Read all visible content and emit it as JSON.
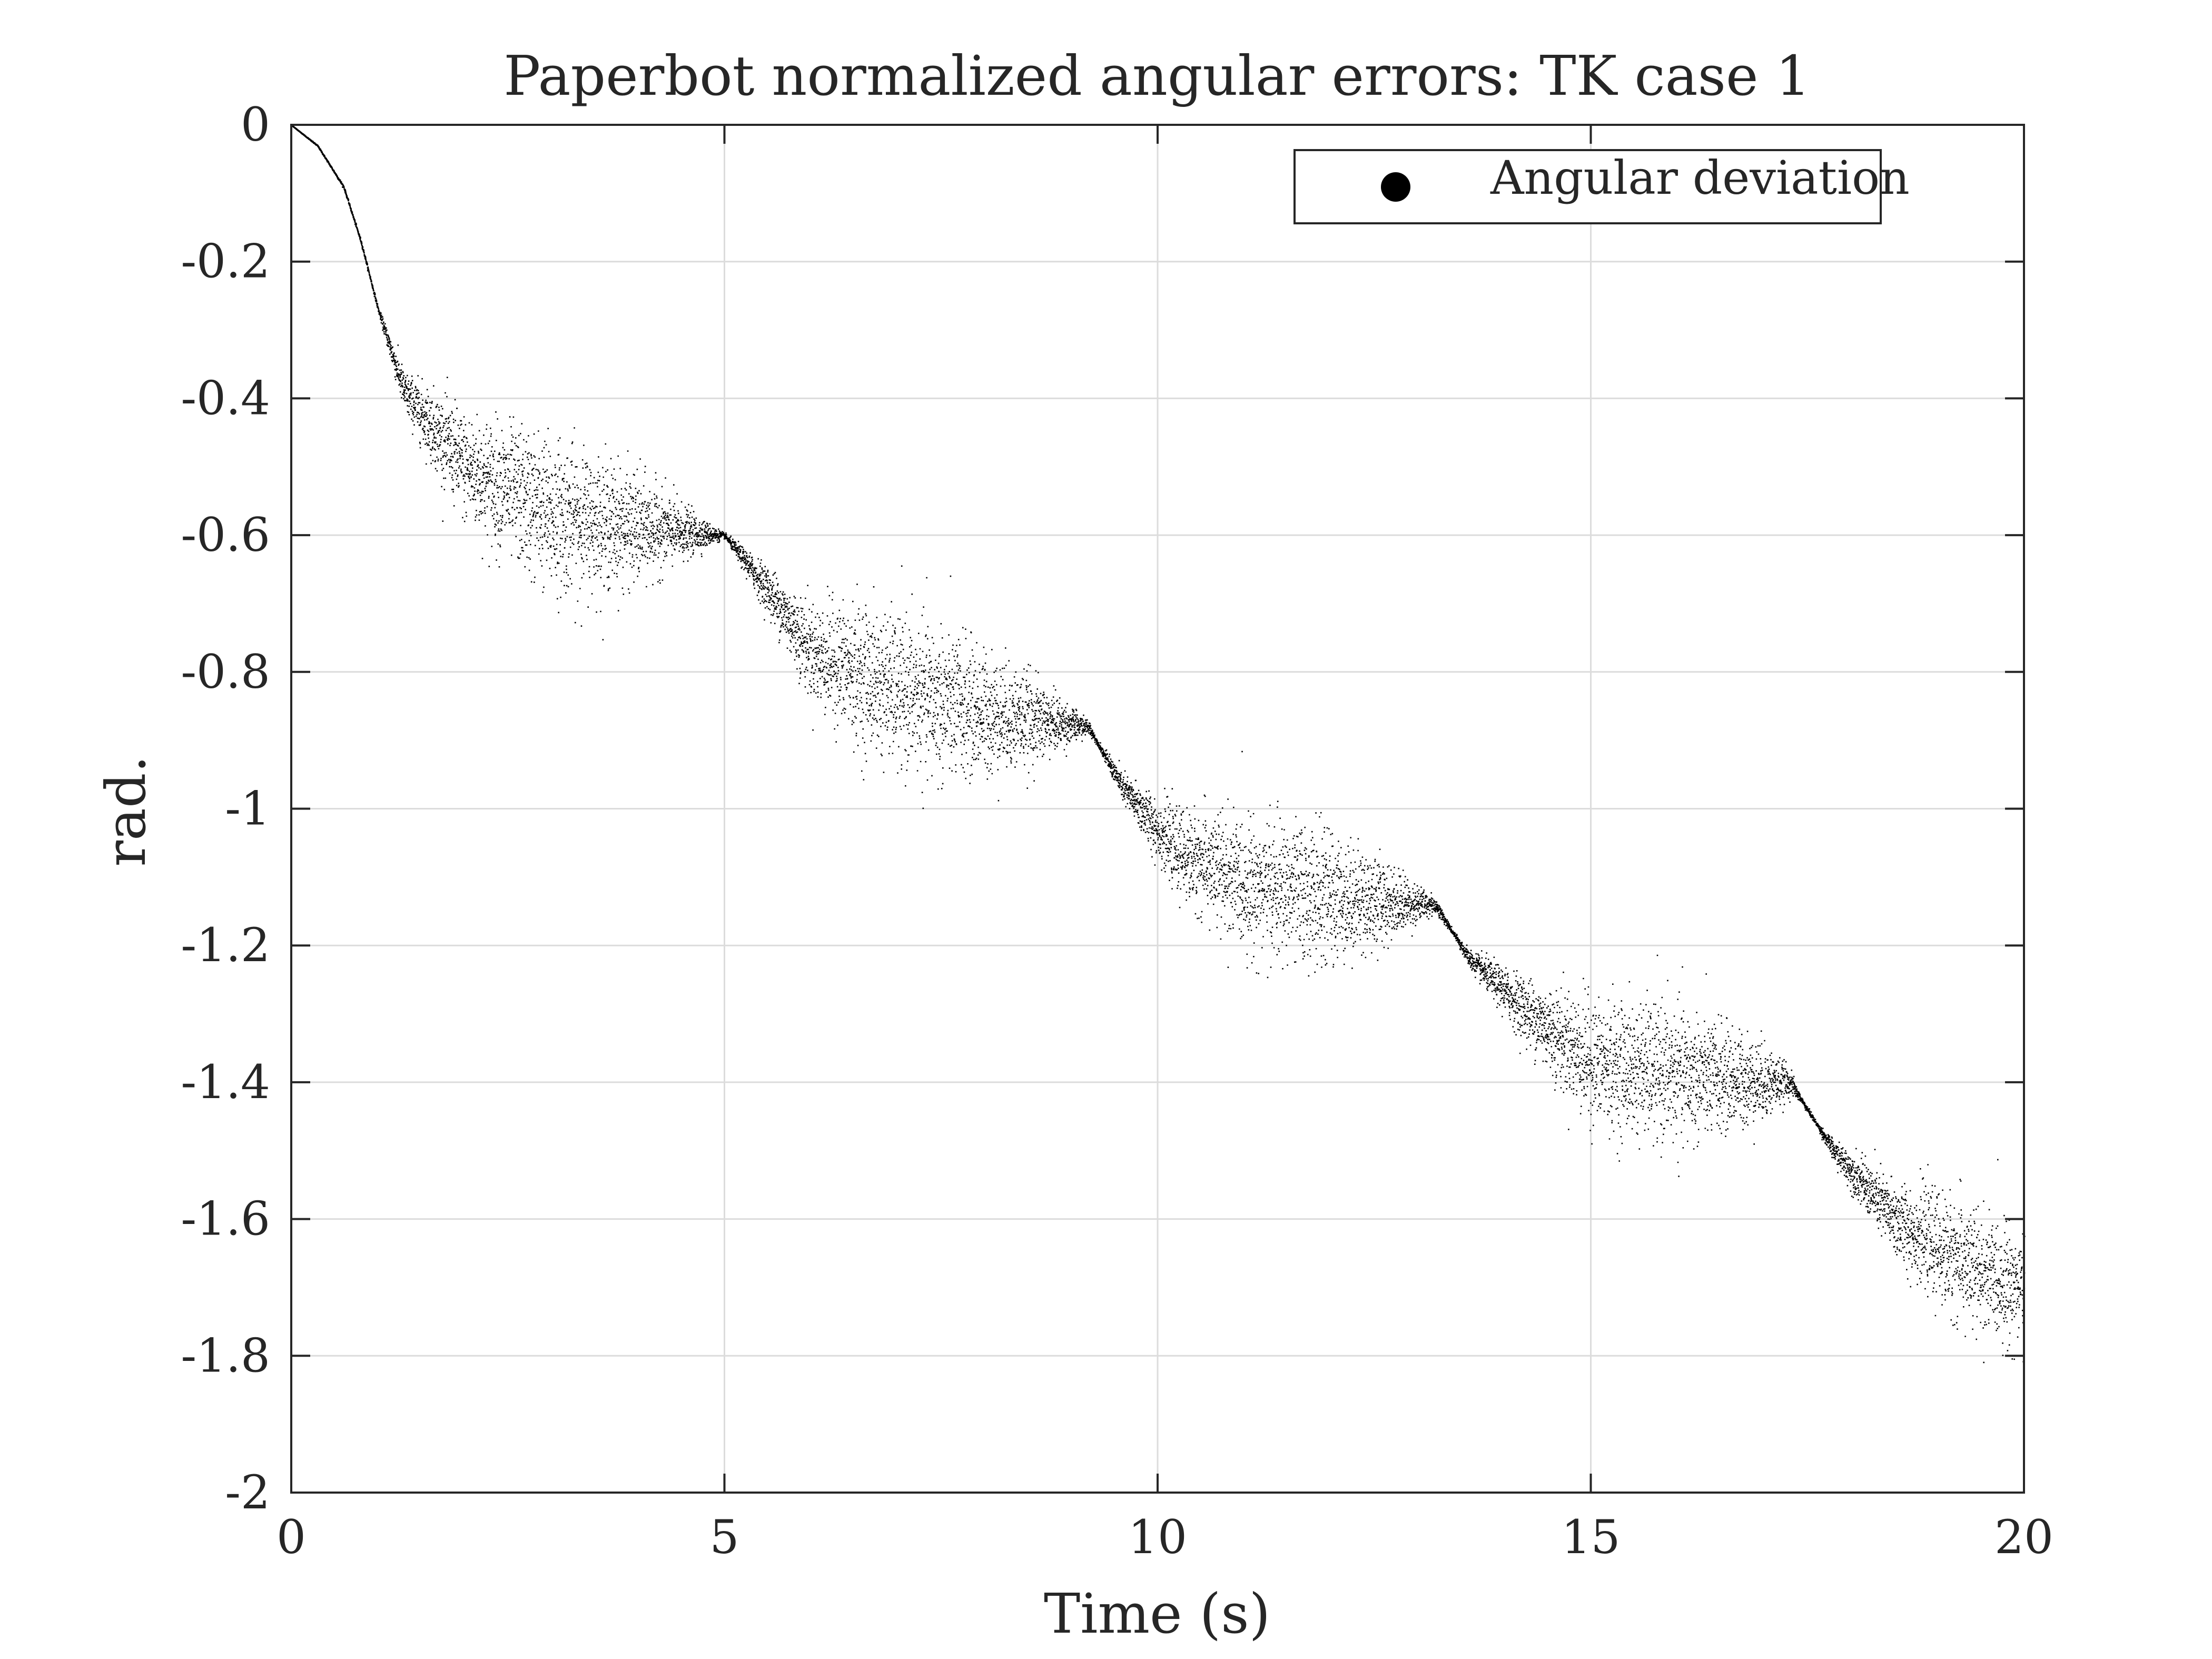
{
  "chart_data": {
    "type": "scatter",
    "title": "Paperbot normalized angular errors: TK case 1",
    "xlabel": "Time (s)",
    "ylabel": "rad.",
    "xlim": [
      0,
      20
    ],
    "ylim": [
      -2,
      0
    ],
    "xticks": [
      0,
      5,
      10,
      15,
      20
    ],
    "xtick_labels": [
      "0",
      "5",
      "10",
      "15",
      "20"
    ],
    "yticks": [
      0,
      -0.2,
      -0.4,
      -0.6,
      -0.8,
      -1,
      -1.2,
      -1.4,
      -1.6,
      -1.8,
      -2
    ],
    "ytick_labels": [
      "0",
      "-0.2",
      "-0.4",
      "-0.6",
      "-0.8",
      "-1",
      "-1.2",
      "-1.4",
      "-1.6",
      "-1.8",
      "-2"
    ],
    "grid": true,
    "legend": {
      "position": "top-right",
      "entries": [
        "Angular deviation"
      ]
    },
    "colors": {
      "points": "#000000",
      "grid": "#dcdcdc",
      "axes": "#262626"
    },
    "series": [
      {
        "name": "Angular deviation",
        "trend": [
          [
            0,
            0
          ],
          [
            0.3,
            -0.03
          ],
          [
            0.6,
            -0.09
          ],
          [
            0.8,
            -0.17
          ],
          [
            1.0,
            -0.27
          ],
          [
            1.3,
            -0.39
          ],
          [
            2.0,
            -0.5
          ],
          [
            3.0,
            -0.57
          ],
          [
            4.0,
            -0.59
          ],
          [
            5.0,
            -0.6
          ],
          [
            5.5,
            -0.68
          ],
          [
            6.0,
            -0.77
          ],
          [
            7.0,
            -0.83
          ],
          [
            8.0,
            -0.86
          ],
          [
            9.2,
            -0.88
          ],
          [
            9.6,
            -0.97
          ],
          [
            10.2,
            -1.06
          ],
          [
            11.0,
            -1.11
          ],
          [
            12.0,
            -1.13
          ],
          [
            13.2,
            -1.14
          ],
          [
            13.6,
            -1.22
          ],
          [
            14.3,
            -1.3
          ],
          [
            15.0,
            -1.37
          ],
          [
            16.0,
            -1.39
          ],
          [
            17.3,
            -1.4
          ],
          [
            17.8,
            -1.5
          ],
          [
            18.5,
            -1.6
          ],
          [
            19.5,
            -1.68
          ],
          [
            20.0,
            -1.7
          ]
        ],
        "spread": [
          [
            0,
            0
          ],
          [
            1.0,
            0.003
          ],
          [
            1.2,
            0.02
          ],
          [
            2.0,
            0.07
          ],
          [
            3.0,
            0.1
          ],
          [
            4.0,
            0.07
          ],
          [
            4.8,
            0.015
          ],
          [
            5.0,
            0.003
          ],
          [
            5.5,
            0.03
          ],
          [
            6.5,
            0.09
          ],
          [
            7.5,
            0.1
          ],
          [
            8.5,
            0.06
          ],
          [
            9.1,
            0.015
          ],
          [
            9.3,
            0.003
          ],
          [
            9.8,
            0.03
          ],
          [
            10.8,
            0.08
          ],
          [
            11.8,
            0.09
          ],
          [
            12.5,
            0.06
          ],
          [
            13.2,
            0.01
          ],
          [
            13.4,
            0.003
          ],
          [
            14.0,
            0.03
          ],
          [
            15.0,
            0.08
          ],
          [
            16.0,
            0.09
          ],
          [
            17.0,
            0.05
          ],
          [
            17.4,
            0.005
          ],
          [
            17.6,
            0.003
          ],
          [
            18.3,
            0.04
          ],
          [
            19.3,
            0.08
          ],
          [
            20.0,
            0.07
          ]
        ],
        "samples": 12000
      }
    ]
  }
}
